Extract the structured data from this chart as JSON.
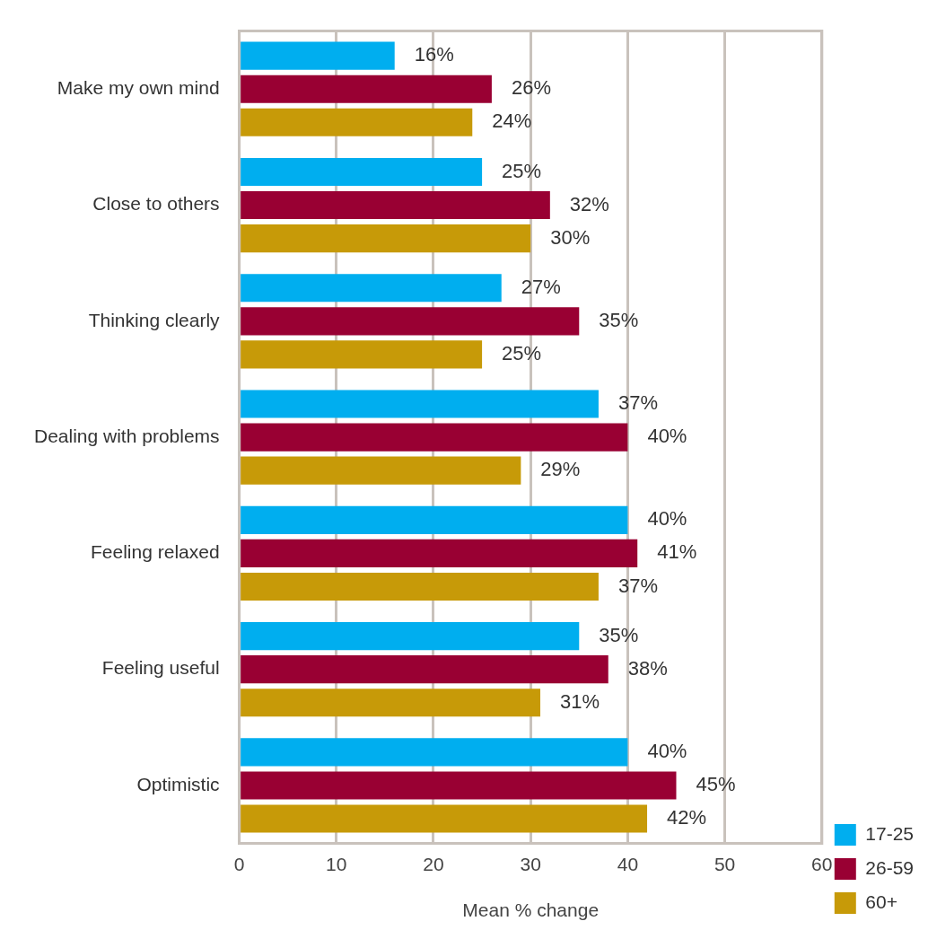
{
  "chart_data": {
    "type": "bar",
    "orientation": "horizontal",
    "xlabel": "Mean % change",
    "categories": [
      "Make my own mind",
      "Close to others",
      "Thinking clearly",
      "Dealing with problems",
      "Feeling relaxed",
      "Feeling useful",
      "Optimistic"
    ],
    "series": [
      {
        "name": "17-25",
        "color": "#00aeef",
        "values": [
          16,
          25,
          27,
          37,
          40,
          35,
          40
        ],
        "value_labels": [
          "16%",
          "25%",
          "27%",
          "37%",
          "40%",
          "35%",
          "40%"
        ]
      },
      {
        "name": "26-59",
        "color": "#990033",
        "values": [
          26,
          32,
          35,
          40,
          41,
          38,
          45
        ],
        "value_labels": [
          "26%",
          "32%",
          "35%",
          "40%",
          "41%",
          "38%",
          "45%"
        ]
      },
      {
        "name": "60+",
        "color": "#c79a08",
        "values": [
          24,
          30,
          25,
          29,
          37,
          31,
          42
        ],
        "value_labels": [
          "24%",
          "30%",
          "25%",
          "29%",
          "37%",
          "31%",
          "42%"
        ]
      }
    ],
    "xlim": [
      0,
      60
    ],
    "xticks": [
      0,
      10,
      20,
      30,
      40,
      50,
      60
    ],
    "grid": "x",
    "legend": "right"
  }
}
